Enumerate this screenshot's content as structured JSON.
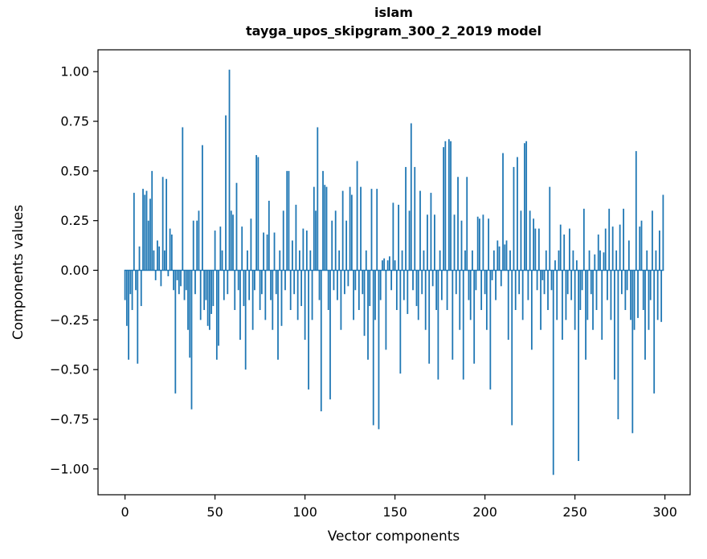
{
  "chart_data": {
    "type": "bar",
    "title": "islam\ntayga_upos_skipgram_300_2_2019 model",
    "title_line1": "islam",
    "title_line2": "tayga_upos_skipgram_300_2_2019 model",
    "xlabel": "Vector components",
    "ylabel": "Components values",
    "x_ticks": [
      0,
      50,
      100,
      150,
      200,
      250,
      300
    ],
    "y_ticks": [
      -1.0,
      -0.75,
      -0.5,
      -0.25,
      0.0,
      0.25,
      0.5,
      0.75,
      1.0
    ],
    "xlim": [
      -15,
      314
    ],
    "ylim": [
      -1.13,
      1.11
    ],
    "grid": false,
    "legend": null,
    "bar_color": "#1f77b4",
    "n_components": 300,
    "values": [
      -0.15,
      -0.28,
      -0.45,
      -0.12,
      -0.2,
      0.39,
      -0.1,
      -0.47,
      0.12,
      -0.18,
      0.41,
      0.38,
      0.4,
      0.25,
      0.36,
      0.5,
      0.1,
      -0.05,
      0.15,
      0.12,
      -0.08,
      0.47,
      0.1,
      0.46,
      -0.03,
      0.21,
      0.18,
      -0.1,
      -0.62,
      -0.05,
      -0.12,
      -0.08,
      0.72,
      -0.15,
      -0.1,
      -0.3,
      -0.44,
      -0.7,
      0.25,
      -0.12,
      0.25,
      0.3,
      -0.25,
      0.63,
      -0.2,
      -0.15,
      -0.28,
      -0.3,
      -0.22,
      -0.18,
      0.2,
      -0.45,
      -0.38,
      0.22,
      0.1,
      -0.15,
      0.78,
      -0.12,
      1.01,
      0.3,
      0.28,
      -0.2,
      0.44,
      -0.1,
      -0.35,
      0.22,
      -0.18,
      -0.5,
      0.1,
      -0.15,
      0.26,
      -0.3,
      -0.1,
      0.58,
      0.57,
      -0.2,
      -0.12,
      0.19,
      -0.25,
      0.18,
      0.35,
      -0.15,
      -0.3,
      0.19,
      -0.12,
      -0.45,
      0.1,
      -0.28,
      0.3,
      -0.1,
      0.5,
      0.5,
      -0.2,
      0.15,
      -0.12,
      0.33,
      -0.25,
      0.1,
      -0.18,
      0.21,
      -0.35,
      0.2,
      -0.6,
      0.1,
      -0.25,
      0.42,
      0.3,
      0.72,
      -0.15,
      -0.71,
      0.5,
      0.43,
      0.42,
      -0.2,
      -0.65,
      0.25,
      -0.1,
      0.3,
      -0.15,
      0.1,
      -0.3,
      0.4,
      -0.12,
      0.25,
      -0.08,
      0.42,
      0.38,
      -0.25,
      -0.1,
      0.55,
      -0.2,
      0.42,
      -0.12,
      -0.33,
      0.1,
      -0.45,
      -0.18,
      0.41,
      -0.78,
      -0.25,
      0.41,
      -0.8,
      -0.15,
      0.05,
      0.06,
      -0.4,
      0.05,
      0.07,
      -0.1,
      0.34,
      0.05,
      -0.2,
      0.33,
      -0.52,
      0.1,
      -0.15,
      0.52,
      -0.22,
      0.3,
      0.74,
      -0.1,
      0.52,
      -0.18,
      -0.25,
      0.4,
      -0.12,
      0.1,
      -0.3,
      0.28,
      -0.47,
      0.39,
      -0.08,
      0.28,
      -0.2,
      -0.55,
      0.1,
      -0.15,
      0.62,
      0.65,
      -0.2,
      0.66,
      0.65,
      -0.45,
      0.28,
      -0.12,
      0.47,
      -0.3,
      0.25,
      -0.55,
      0.1,
      0.47,
      -0.15,
      -0.25,
      0.1,
      -0.47,
      -0.1,
      0.27,
      0.26,
      -0.2,
      0.28,
      -0.12,
      -0.3,
      0.26,
      -0.6,
      -0.05,
      0.1,
      -0.15,
      0.15,
      0.12,
      -0.08,
      0.59,
      0.13,
      0.15,
      -0.35,
      0.1,
      -0.78,
      0.52,
      -0.2,
      0.57,
      -0.12,
      0.3,
      -0.25,
      0.64,
      0.65,
      -0.15,
      0.3,
      -0.4,
      0.26,
      0.21,
      -0.1,
      0.21,
      -0.3,
      -0.05,
      -0.12,
      0.1,
      -0.2,
      0.42,
      -0.1,
      -1.03,
      0.05,
      -0.25,
      0.1,
      0.23,
      -0.35,
      0.18,
      -0.25,
      -0.12,
      0.21,
      -0.15,
      0.1,
      -0.3,
      0.05,
      -0.96,
      -0.2,
      -0.1,
      0.31,
      -0.45,
      -0.25,
      0.1,
      -0.12,
      -0.3,
      0.08,
      -0.2,
      0.18,
      0.1,
      -0.35,
      0.09,
      0.21,
      -0.15,
      0.31,
      -0.25,
      0.22,
      -0.55,
      0.1,
      -0.75,
      0.23,
      -0.12,
      0.31,
      -0.2,
      -0.1,
      0.15,
      -0.25,
      -0.82,
      -0.3,
      0.6,
      -0.24,
      0.22,
      0.25,
      -0.2,
      -0.45,
      0.1,
      -0.3,
      -0.15,
      0.3,
      -0.62,
      0.1,
      -0.25,
      0.2,
      -0.26,
      0.38
    ]
  }
}
